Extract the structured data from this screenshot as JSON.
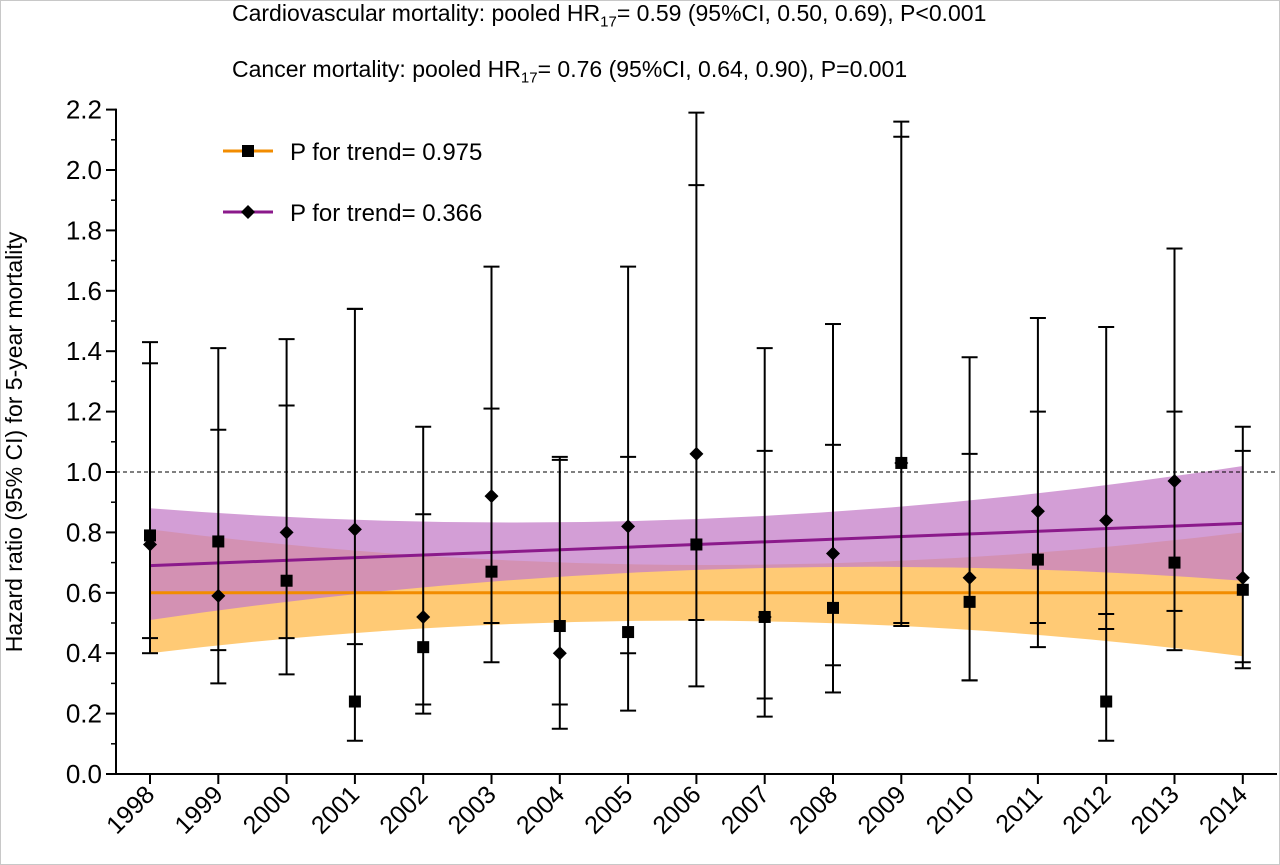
{
  "chart_data": {
    "type": "line",
    "annotations": [
      {
        "prefix": "Cardiovascular mortality: pooled HR",
        "subscript": "17",
        "suffix": "= 0.59 (95%CI, 0.50, 0.69), P<0.001"
      },
      {
        "prefix": "Cancer mortality: pooled HR",
        "subscript": "17",
        "suffix": "= 0.76 (95%CI, 0.64, 0.90), P=0.001"
      }
    ],
    "ylabel": "Hazard ratio (95% CI) for 5-year mortality",
    "xlabel": "",
    "ylim": [
      0,
      2.2
    ],
    "y_ticks": [
      "0.0",
      "0.2",
      "0.4",
      "0.6",
      "0.8",
      "1.0",
      "1.2",
      "1.4",
      "1.6",
      "1.8",
      "2.0",
      "2.2"
    ],
    "categories": [
      "1998",
      "1999",
      "2000",
      "2001",
      "2002",
      "2003",
      "2004",
      "2005",
      "2006",
      "2007",
      "2008",
      "2009",
      "2010",
      "2011",
      "2012",
      "2013",
      "2014"
    ],
    "reference_line": 1.0,
    "legend_placement": "top-left",
    "series": [
      {
        "name": "P for trend= 0.975",
        "marker": "square",
        "color": "#f28c00",
        "band_color": "#ffc76e",
        "values": [
          0.79,
          0.77,
          0.64,
          0.24,
          0.42,
          0.67,
          0.49,
          0.47,
          0.76,
          0.52,
          0.55,
          1.03,
          0.57,
          0.71,
          0.24,
          0.7,
          0.61
        ],
        "ci_lower": [
          0.45,
          0.41,
          0.45,
          0.11,
          0.2,
          0.5,
          0.23,
          0.4,
          0.51,
          0.19,
          0.27,
          0.5,
          0.31,
          0.42,
          0.11,
          0.41,
          0.37
        ],
        "ci_upper": [
          1.43,
          1.41,
          1.44,
          1.54,
          0.86,
          1.21,
          1.05,
          1.68,
          1.95,
          1.41,
          1.09,
          2.16,
          1.38,
          1.51,
          0.53,
          1.2,
          1.15
        ],
        "trend": [
          0.6,
          0.6
        ],
        "band_lower": [
          0.4,
          0.39
        ],
        "band_upper": [
          0.81,
          0.8
        ]
      },
      {
        "name": "P for trend= 0.366",
        "marker": "diamond",
        "color": "#8b1a8b",
        "band_color": "#c47ec8",
        "values": [
          0.76,
          0.59,
          0.8,
          0.81,
          0.52,
          0.92,
          0.4,
          0.82,
          1.06,
          0.52,
          0.73,
          1.03,
          0.65,
          0.87,
          0.84,
          0.97,
          0.65
        ],
        "ci_lower": [
          0.4,
          0.3,
          0.33,
          0.43,
          0.23,
          0.37,
          0.15,
          0.21,
          0.29,
          0.25,
          0.36,
          0.49,
          0.31,
          0.5,
          0.48,
          0.54,
          0.35
        ],
        "ci_upper": [
          1.36,
          1.14,
          1.22,
          1.54,
          1.15,
          1.68,
          1.04,
          1.05,
          2.19,
          1.07,
          1.49,
          2.11,
          1.06,
          1.2,
          1.48,
          1.74,
          1.07
        ],
        "trend": [
          0.69,
          0.83
        ],
        "band_lower": [
          0.51,
          0.64
        ],
        "band_upper": [
          0.88,
          1.02
        ]
      }
    ]
  }
}
